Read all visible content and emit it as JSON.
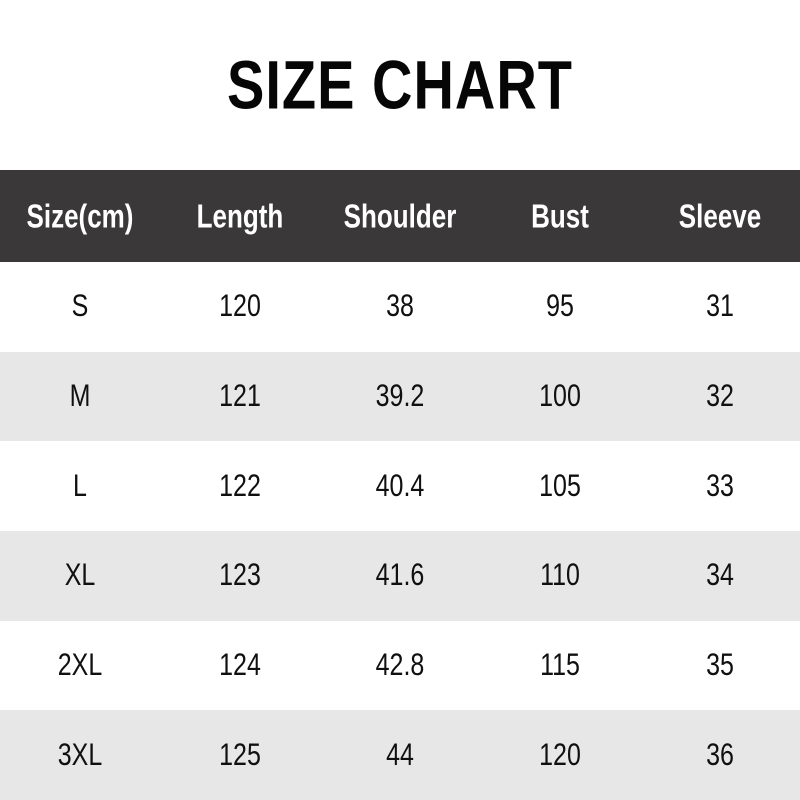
{
  "title": "SIZE CHART",
  "colors": {
    "page_background": "#ffffff",
    "header_background": "#3a3839",
    "header_text": "#ffffff",
    "row_background": "#ffffff",
    "row_alt_background": "#e8e7e7",
    "body_text": "#101010",
    "title_text": "#060606"
  },
  "chart_data": {
    "type": "table",
    "title": "SIZE CHART",
    "columns": [
      "Size(cm)",
      "Length",
      "Shoulder",
      "Bust",
      "Sleeve"
    ],
    "rows": [
      [
        "S",
        "120",
        "38",
        "95",
        "31"
      ],
      [
        "M",
        "121",
        "39.2",
        "100",
        "32"
      ],
      [
        "L",
        "122",
        "40.4",
        "105",
        "33"
      ],
      [
        "XL",
        "123",
        "41.6",
        "110",
        "34"
      ],
      [
        "2XL",
        "124",
        "42.8",
        "115",
        "35"
      ],
      [
        "3XL",
        "125",
        "44",
        "120",
        "36"
      ]
    ],
    "layout": {
      "columns_equal_width": true,
      "alternating_rows": true,
      "grid_lines": false
    }
  }
}
